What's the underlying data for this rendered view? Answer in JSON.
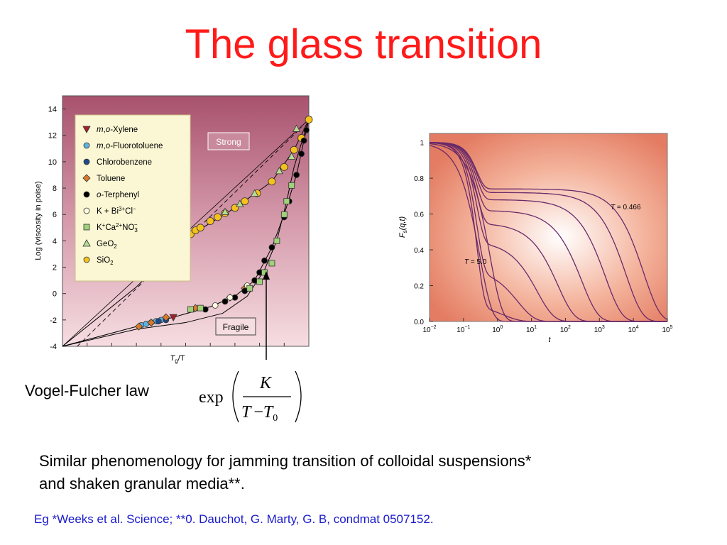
{
  "slide": {
    "title": "The glass transition",
    "vogel_fulcher_label": "Vogel-Fulcher law",
    "formula": {
      "func": "exp",
      "numerator": "K",
      "denominator_T": "T",
      "denominator_minus": "−",
      "denominator_T0": "T",
      "subscript": "0"
    },
    "body_line1": "Similar phenomenology for jamming transition of colloidal suspensions*",
    "body_line2": "and shaken granular media**.",
    "reference": "Eg *Weeks et al. Science; **0. Dauchot, G. Marty, G. B, condmat 0507152."
  },
  "chart_data": [
    {
      "type": "scatter",
      "ylabel": "Log (viscosity in poise)",
      "xlabel_T": "T",
      "xlabel_sub": "g",
      "xlabel_rest": "/T",
      "ylim": [
        -4,
        15
      ],
      "xlim": [
        0,
        1
      ],
      "yticks": [
        "14",
        "12",
        "10",
        "8",
        "6",
        "4",
        "2",
        "0",
        "-2",
        "-4"
      ],
      "labels": {
        "strong": "Strong",
        "fragile": "Fragile"
      },
      "legend": [
        {
          "prefix": "m",
          "sep": ",",
          "prefix2": "o",
          "rest": "-Xylene",
          "marker": "triangle-down",
          "color": "#a3202a"
        },
        {
          "prefix": "m",
          "sep": ",",
          "prefix2": "o",
          "rest": "-Fluorotoluene",
          "marker": "circle",
          "color": "#5fb3dd"
        },
        {
          "prefix": "",
          "sep": "",
          "prefix2": "",
          "rest": "Chlorobenzene",
          "marker": "circle",
          "color": "#1e4a8a"
        },
        {
          "prefix": "",
          "sep": "",
          "prefix2": "",
          "rest": "Toluene",
          "marker": "diamond",
          "color": "#d97a2b"
        },
        {
          "prefix": "",
          "sep": "",
          "prefix2": "o",
          "rest": "-Terphenyl",
          "marker": "circle",
          "color": "#000000"
        },
        {
          "text": "K + Bi",
          "sup": "3+",
          "text2": "Cl",
          "sup2": "−",
          "marker": "circle-open",
          "color": "#fffbe0"
        },
        {
          "text": "K",
          "sup": "+",
          "text2": "Ca",
          "sup2": "2+",
          "text3": "NO",
          "sub3": "3",
          "sup3": "−",
          "marker": "square",
          "color": "#9fd27a"
        },
        {
          "text": "GeO",
          "sub": "2",
          "marker": "triangle-up",
          "color": "#b7dc95"
        },
        {
          "text": "SiO",
          "sub": "2",
          "marker": "circle",
          "color": "#f5c21b"
        }
      ],
      "series": [
        {
          "marker": "circle",
          "color": "#f5c21b",
          "x": [
            0.5,
            0.52,
            0.54,
            0.56,
            0.6,
            0.63,
            0.66,
            0.7,
            0.74,
            0.79,
            0.85,
            0.9,
            0.94,
            0.97,
            1.0
          ],
          "y": [
            4.2,
            4.5,
            4.8,
            5.0,
            5.5,
            5.8,
            6.1,
            6.5,
            7.0,
            7.6,
            8.5,
            9.6,
            10.9,
            11.8,
            13.2
          ]
        },
        {
          "marker": "triangle-up",
          "color": "#b7dc95",
          "x": [
            0.66,
            0.72,
            0.78,
            0.88,
            0.93,
            0.95
          ],
          "y": [
            6.2,
            6.8,
            7.6,
            9.3,
            10.4,
            12.5
          ]
        },
        {
          "marker": "triangle-down",
          "color": "#a3202a",
          "x": [
            0.45
          ],
          "y": [
            -1.8
          ]
        },
        {
          "marker": "circle",
          "color": "#5fb3dd",
          "x": [
            0.32,
            0.34,
            0.36,
            0.38,
            0.4
          ],
          "y": [
            -2.4,
            -2.3,
            -2.2,
            -2.1,
            -2.0
          ]
        },
        {
          "marker": "circle",
          "color": "#1e4a8a",
          "x": [
            0.39,
            0.42
          ],
          "y": [
            -2.1,
            -2.0
          ]
        },
        {
          "marker": "diamond",
          "color": "#d97a2b",
          "x": [
            0.31,
            0.36,
            0.42,
            0.54,
            0.68,
            0.74
          ],
          "y": [
            -2.5,
            -2.2,
            -1.8,
            -1.1,
            -0.3,
            0.4
          ]
        },
        {
          "marker": "circle",
          "color": "#000000",
          "x": [
            0.58,
            0.66,
            0.7,
            0.74,
            0.78,
            0.8,
            0.82,
            0.85,
            0.9,
            0.92,
            0.95,
            0.97,
            0.98,
            0.99
          ],
          "y": [
            -1.2,
            -0.6,
            -0.3,
            0.2,
            1.0,
            1.6,
            2.5,
            3.5,
            5.8,
            7.0,
            9.0,
            10.6,
            11.6,
            12.4
          ]
        },
        {
          "marker": "circle-open",
          "color": "#fffbe0",
          "x": [
            0.62,
            0.68,
            0.75
          ],
          "y": [
            -0.9,
            -0.3,
            0.6
          ]
        },
        {
          "marker": "square",
          "color": "#9fd27a",
          "x": [
            0.52,
            0.56,
            0.76,
            0.8,
            0.82,
            0.85,
            0.87,
            0.9,
            0.91,
            0.93
          ],
          "y": [
            -1.2,
            -1.1,
            0.4,
            0.9,
            1.6,
            2.3,
            4.0,
            6.0,
            7.0,
            8.2
          ]
        }
      ]
    },
    {
      "type": "line",
      "ylabel_F": "F",
      "ylabel_sub": "s",
      "ylabel_rest": "(q,t)",
      "xlabel": "t",
      "xscale": "log",
      "xlim": [
        -2,
        5
      ],
      "ylim": [
        0,
        1.05
      ],
      "xtick_base": "10",
      "xtick_exps": [
        "−2",
        "−1",
        "0",
        "1",
        "2",
        "3",
        "4",
        "5"
      ],
      "yticks": [
        "1",
        "0.8",
        "0.6",
        "0.4",
        "0.2",
        "0.0"
      ],
      "annotations": [
        {
          "T": "T",
          "rest": " = 0.466"
        },
        {
          "T": "T",
          "rest": " = 5.0"
        }
      ],
      "series": [
        {
          "tau": 0.3,
          "plateau": 0.0
        },
        {
          "tau": 0.6,
          "plateau": 0.0
        },
        {
          "tau": 1.5,
          "plateau": 0.1
        },
        {
          "tau": 4,
          "plateau": 0.3
        },
        {
          "tau": 15,
          "plateau": 0.45
        },
        {
          "tau": 60,
          "plateau": 0.55
        },
        {
          "tau": 300,
          "plateau": 0.62
        },
        {
          "tau": 1500,
          "plateau": 0.68
        },
        {
          "tau": 6000,
          "plateau": 0.72
        },
        {
          "tau": 20000,
          "plateau": 0.74
        }
      ],
      "line_color": "#6a2a6a"
    }
  ]
}
